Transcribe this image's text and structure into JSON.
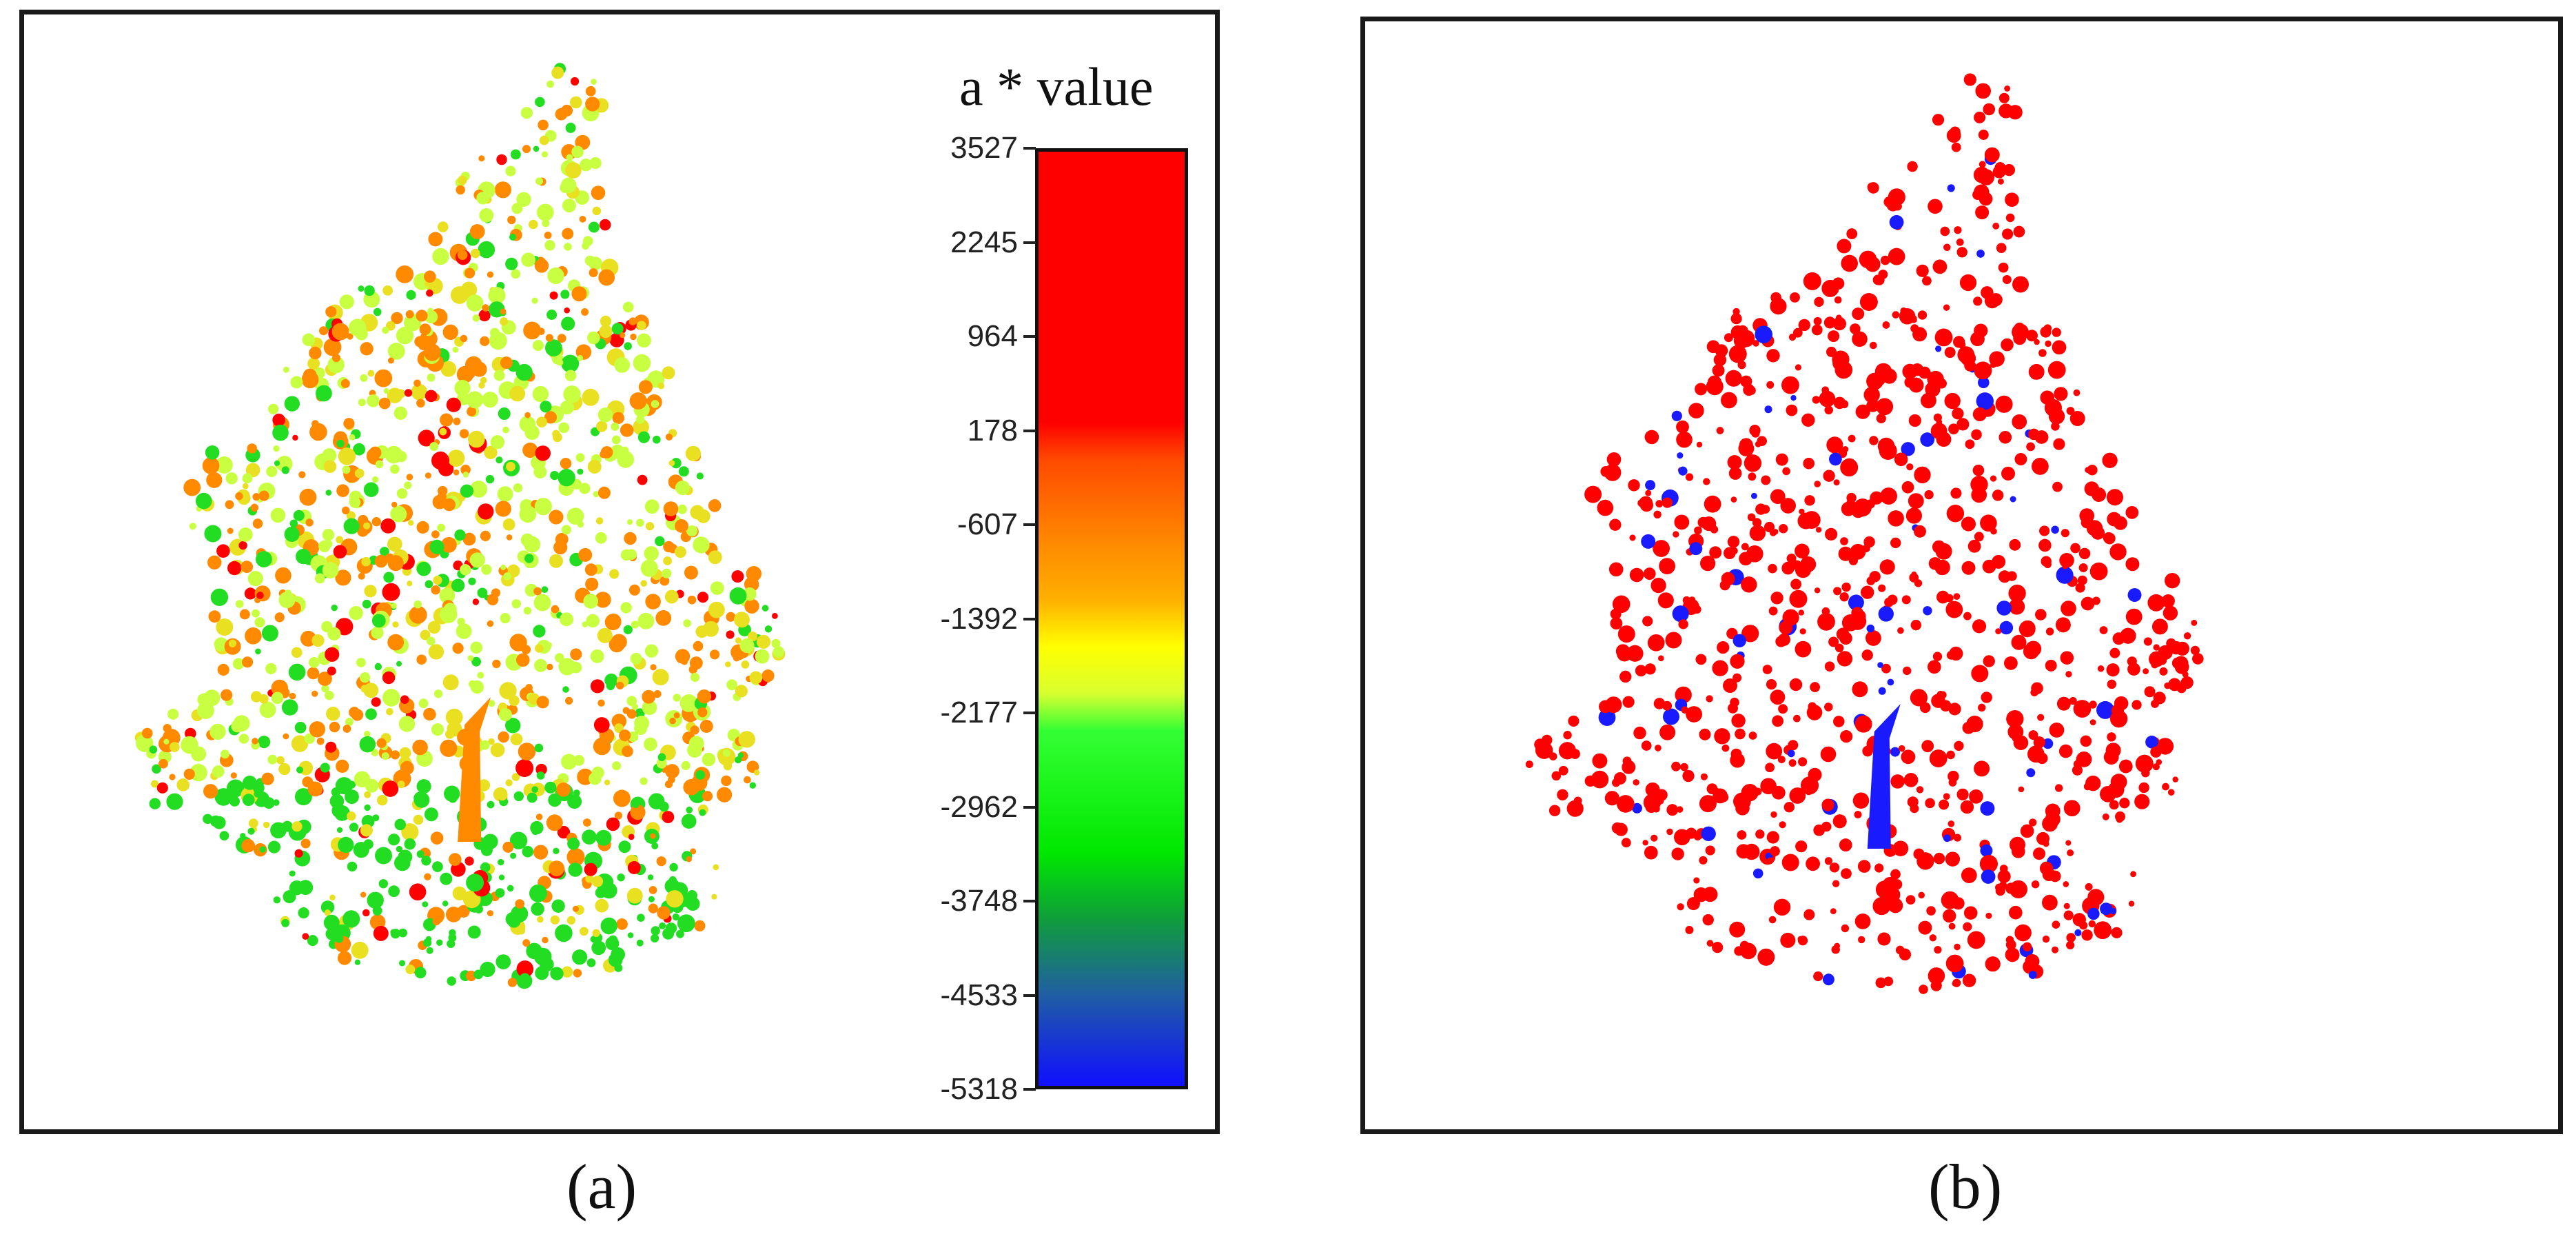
{
  "panel_a": {
    "colorbar_title": "a * value",
    "colorbar_ticks": [
      "3527",
      "2245",
      "964",
      "178",
      "-607",
      "-1392",
      "-2177",
      "-2962",
      "-3748",
      "-4533",
      "-5318"
    ],
    "caption": "(a)"
  },
  "panel_b": {
    "caption": "(b)"
  },
  "colors": {
    "red": "#ff0000",
    "orange": "#ff8a00",
    "yellow_green": "#c8ff40",
    "green": "#22dd22",
    "blue": "#1a1aff"
  }
}
